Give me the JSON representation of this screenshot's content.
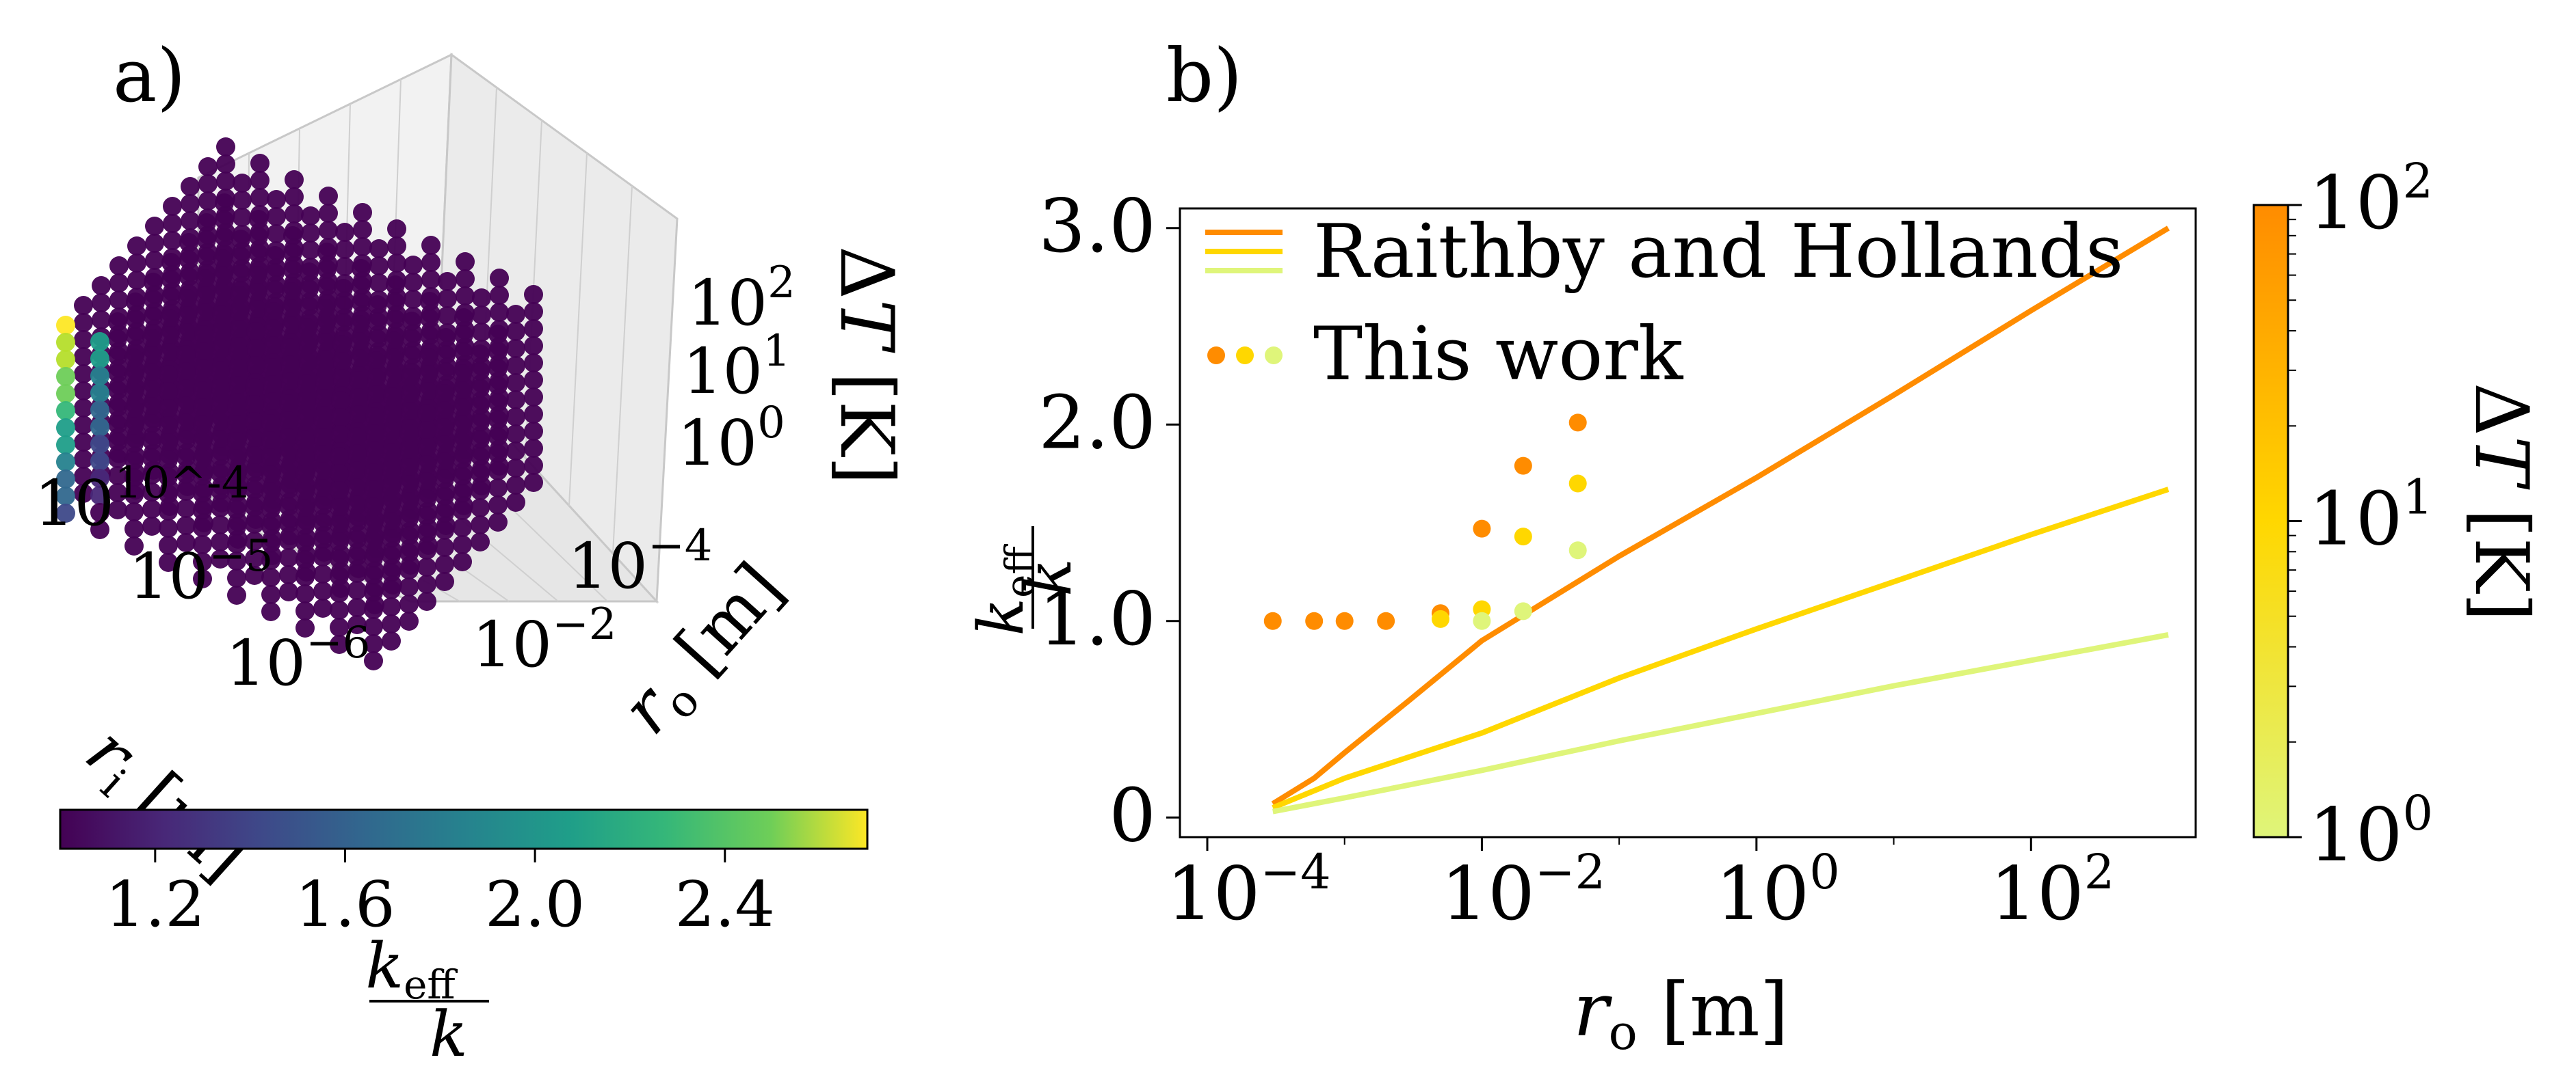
{
  "panel_labels": {
    "a": "a)",
    "b": "b)"
  },
  "colors": {
    "viridis_dark": "#440154",
    "viridis_mid": "#21918c",
    "viridis_light": "#fde725",
    "dt_high": "#ff8c00",
    "dt_mid": "#ffd700",
    "dt_low": "#dff57a"
  },
  "chart_data": [
    {
      "type": "scatter",
      "panel": "a",
      "projection": "3d",
      "axes": {
        "ri": {
          "label": "r_i [m]",
          "ticks": [
            "10^-4",
            "10^-5",
            "10^-6"
          ]
        },
        "ro": {
          "label": "r_o [m]",
          "ticks": [
            "10^-4",
            "10^-2"
          ]
        },
        "dT": {
          "label": "ΔT [K]",
          "ticks": [
            "10^2",
            "10^1",
            "10^0"
          ]
        }
      },
      "grid_size": [
        10,
        10,
        12
      ],
      "color_value_range": [
        1.0,
        2.7
      ],
      "colorbar": {
        "label_num": "k_eff",
        "label_den": "k",
        "ticks": [
          1.2,
          1.6,
          2.0,
          2.4
        ],
        "tick_labels": [
          "1.2",
          "1.6",
          "2.0",
          "2.4"
        ],
        "range": [
          1.0,
          2.7
        ],
        "colormap": "viridis"
      }
    },
    {
      "type": "line",
      "panel": "b",
      "xscale": "log",
      "xlim": [
        0.0001,
        1000
      ],
      "ylim": [
        -0.1,
        3.1
      ],
      "xlabel": "r_o [m]",
      "ylabel_num": "k_eff",
      "ylabel_den": "k",
      "xticks": [
        0.0001,
        0.01,
        1,
        100
      ],
      "xtick_labels": [
        [
          "10",
          "−4"
        ],
        [
          "10",
          "−2"
        ],
        [
          "10",
          "0"
        ],
        [
          "10",
          "2"
        ]
      ],
      "yticks": [
        0,
        1,
        2,
        3
      ],
      "ytick_labels": [
        "0",
        "1.0",
        "2.0",
        "3.0"
      ],
      "legend": {
        "position": "top-left",
        "entries": [
          {
            "label": "Raithby and Hollands",
            "style": "line"
          },
          {
            "label": "This work",
            "style": "dots"
          }
        ]
      },
      "series": [
        {
          "name": "Raithby and Hollands ΔT=100 K",
          "dT": 100,
          "style": "line",
          "x": [
            0.0003,
            0.0006,
            0.001,
            0.003,
            0.01,
            0.1,
            1,
            10,
            100,
            1000
          ],
          "y": [
            0.07,
            0.2,
            0.33,
            0.6,
            0.9,
            1.33,
            1.73,
            2.15,
            2.58,
            3.0
          ]
        },
        {
          "name": "Raithby and Hollands ΔT=10 K",
          "dT": 10,
          "style": "line",
          "x": [
            0.0003,
            0.001,
            0.01,
            0.1,
            1,
            10,
            100,
            1000
          ],
          "y": [
            0.05,
            0.2,
            0.43,
            0.71,
            0.96,
            1.2,
            1.44,
            1.67
          ]
        },
        {
          "name": "Raithby and Hollands ΔT=1 K",
          "dT": 1,
          "style": "line",
          "x": [
            0.0003,
            0.001,
            0.01,
            0.1,
            1,
            10,
            100,
            1000
          ],
          "y": [
            0.03,
            0.1,
            0.24,
            0.39,
            0.53,
            0.67,
            0.8,
            0.93
          ]
        },
        {
          "name": "This work ΔT=100 K",
          "dT": 100,
          "style": "dots",
          "x": [
            0.0003,
            0.0006,
            0.001,
            0.002,
            0.005,
            0.01,
            0.02,
            0.05
          ],
          "y": [
            1.0,
            1.0,
            1.0,
            1.0,
            1.04,
            1.47,
            1.79,
            2.01
          ]
        },
        {
          "name": "This work ΔT=10 K",
          "dT": 10,
          "style": "dots",
          "x": [
            0.005,
            0.01,
            0.02,
            0.05
          ],
          "y": [
            1.01,
            1.06,
            1.43,
            1.7
          ]
        },
        {
          "name": "This work ΔT=1 K",
          "dT": 1,
          "style": "dots",
          "x": [
            0.01,
            0.02,
            0.05
          ],
          "y": [
            1.0,
            1.05,
            1.36
          ]
        }
      ],
      "colorbar": {
        "label": "ΔT [K]",
        "scale": "log",
        "range": [
          1,
          100
        ],
        "ticks": [
          1,
          10,
          100
        ],
        "tick_labels": [
          [
            "10",
            "0"
          ],
          [
            "10",
            "1"
          ],
          [
            "10",
            "2"
          ]
        ]
      }
    }
  ]
}
